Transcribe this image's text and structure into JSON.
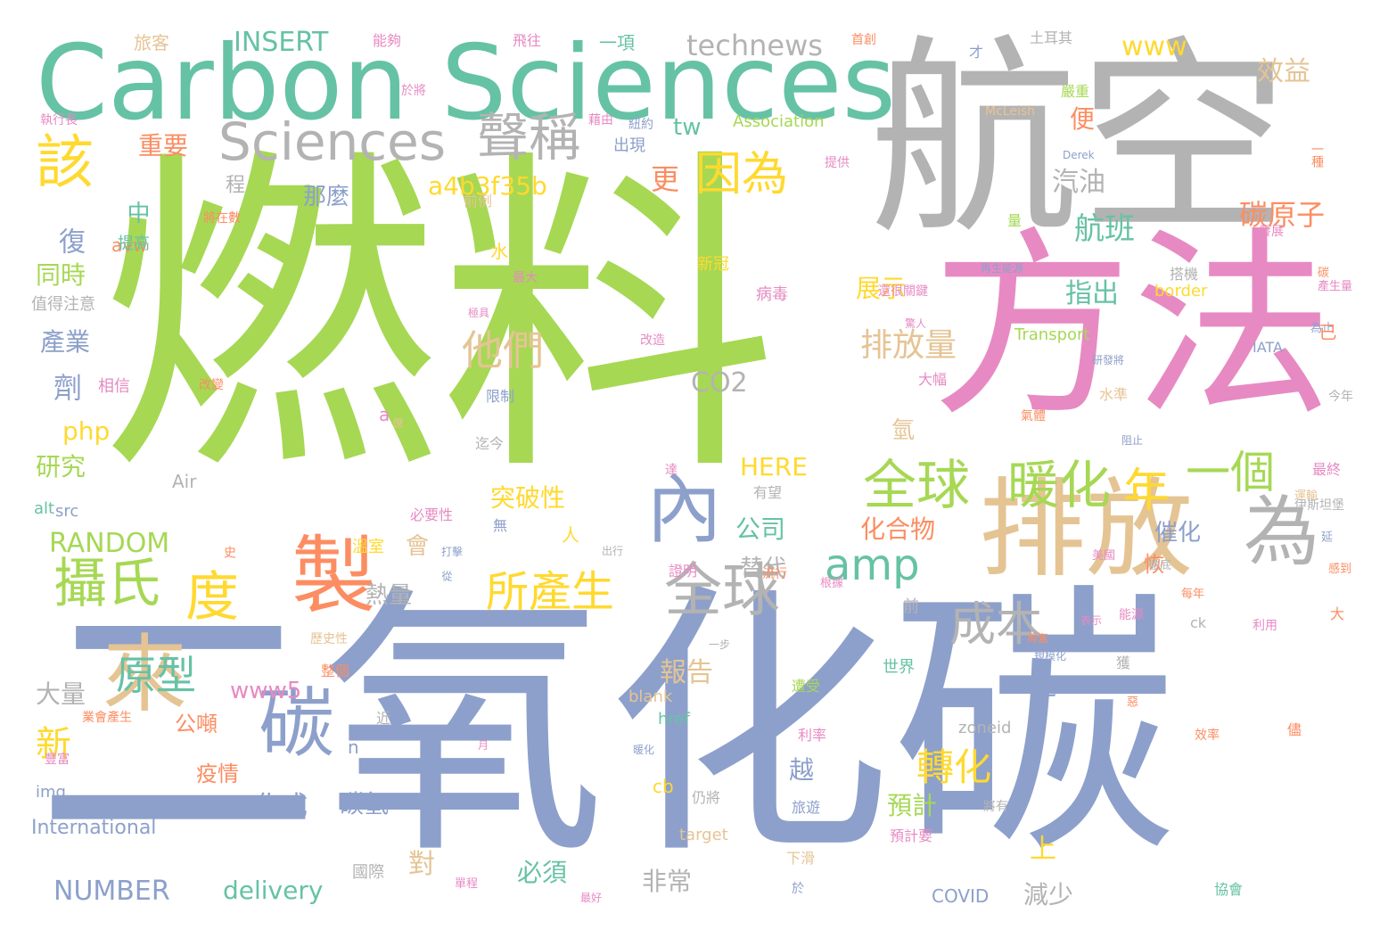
{
  "palette": {
    "green": "#a6d854",
    "gray": "#b3b3b3",
    "blue": "#8da0cb",
    "pink": "#e78ac3",
    "teal": "#66c2a5",
    "orange": "#fc8d62",
    "yellow": "#ffd92f",
    "tan": "#e5c494"
  },
  "words": [
    {
      "text": "燃料",
      "color": "green"
    },
    {
      "text": "二氧化碳",
      "color": "blue"
    },
    {
      "text": "Carbon Sciences",
      "color": "teal"
    },
    {
      "text": "航空",
      "color": "gray"
    },
    {
      "text": "方法",
      "color": "pink"
    },
    {
      "text": "排放",
      "color": "tan"
    },
    {
      "text": "內",
      "color": "blue"
    },
    {
      "text": "為",
      "color": "gray"
    },
    {
      "text": "製",
      "color": "orange"
    },
    {
      "text": "來",
      "color": "tan"
    },
    {
      "text": "碳",
      "color": "blue"
    },
    {
      "text": "Sciences",
      "color": "gray"
    },
    {
      "text": "聲稱",
      "color": "gray"
    },
    {
      "text": "該",
      "color": "yellow"
    },
    {
      "text": "攝氏",
      "color": "green"
    },
    {
      "text": "度",
      "color": "yellow"
    },
    {
      "text": "全球",
      "color": "gray"
    },
    {
      "text": "全球",
      "color": "green"
    },
    {
      "text": "暖化",
      "color": "green"
    },
    {
      "text": "年",
      "color": "yellow"
    },
    {
      "text": "一個",
      "color": "green"
    },
    {
      "text": "amp",
      "color": "teal"
    },
    {
      "text": "所產生",
      "color": "yellow"
    },
    {
      "text": "成本",
      "color": "gray"
    },
    {
      "text": "因為",
      "color": "yellow"
    },
    {
      "text": "他們",
      "color": "tan"
    },
    {
      "text": "原型",
      "color": "teal"
    },
    {
      "text": "轉化",
      "color": "yellow"
    },
    {
      "text": "排放量",
      "color": "tan"
    },
    {
      "text": "航班",
      "color": "teal"
    },
    {
      "text": "碳原子",
      "color": "orange"
    },
    {
      "text": "technews",
      "color": "gray"
    },
    {
      "text": "INSERT",
      "color": "teal"
    },
    {
      "text": "www",
      "color": "yellow"
    },
    {
      "text": "效益",
      "color": "tan"
    },
    {
      "text": "a4b3f35b",
      "color": "yellow"
    },
    {
      "text": "更",
      "color": "orange"
    },
    {
      "text": "重要",
      "color": "orange"
    },
    {
      "text": "那麼",
      "color": "blue"
    },
    {
      "text": "汽油",
      "color": "gray"
    },
    {
      "text": "便",
      "color": "orange"
    },
    {
      "text": "tw",
      "color": "teal"
    },
    {
      "text": "CO2",
      "color": "gray"
    },
    {
      "text": "指出",
      "color": "teal"
    },
    {
      "text": "展示",
      "color": "yellow"
    },
    {
      "text": "RANDOM",
      "color": "green"
    },
    {
      "text": "HERE",
      "color": "yellow"
    },
    {
      "text": "突破性",
      "color": "yellow"
    },
    {
      "text": "公司",
      "color": "teal"
    },
    {
      "text": "化合物",
      "color": "orange"
    },
    {
      "text": "催化",
      "color": "blue"
    },
    {
      "text": "恢",
      "color": "orange"
    },
    {
      "text": "替代",
      "color": "gray"
    },
    {
      "text": "熱量",
      "color": "gray"
    },
    {
      "text": "報告",
      "color": "tan"
    },
    {
      "text": "www5",
      "color": "pink"
    },
    {
      "text": "大量",
      "color": "gray"
    },
    {
      "text": "新",
      "color": "yellow"
    },
    {
      "text": "公噸",
      "color": "orange"
    },
    {
      "text": "疫情",
      "color": "orange"
    },
    {
      "text": "轉",
      "color": "blue"
    },
    {
      "text": "化成",
      "color": "blue"
    },
    {
      "text": "碳氫",
      "color": "blue"
    },
    {
      "text": "預計",
      "color": "green"
    },
    {
      "text": "上",
      "color": "yellow"
    },
    {
      "text": "減少",
      "color": "gray"
    },
    {
      "text": "必須",
      "color": "teal"
    },
    {
      "text": "非常",
      "color": "gray"
    },
    {
      "text": "NUMBER",
      "color": "blue"
    },
    {
      "text": "delivery",
      "color": "teal"
    },
    {
      "text": "產業",
      "color": "blue"
    },
    {
      "text": "同時",
      "color": "green"
    },
    {
      "text": "研究",
      "color": "green"
    },
    {
      "text": "php",
      "color": "yellow"
    },
    {
      "text": "劑",
      "color": "blue"
    },
    {
      "text": "復",
      "color": "blue"
    },
    {
      "text": "中",
      "color": "teal"
    },
    {
      "text": "程",
      "color": "gray"
    },
    {
      "text": "avw",
      "color": "orange"
    },
    {
      "text": "提高",
      "color": "teal"
    },
    {
      "text": "值得注意",
      "color": "gray"
    },
    {
      "text": "Association",
      "color": "green"
    },
    {
      "text": "McLeish",
      "color": "tan"
    },
    {
      "text": "Transport",
      "color": "green"
    },
    {
      "text": "border",
      "color": "yellow"
    },
    {
      "text": "IATA",
      "color": "blue"
    },
    {
      "text": "International",
      "color": "blue"
    },
    {
      "text": "COVID",
      "color": "blue"
    },
    {
      "text": "img",
      "color": "blue"
    },
    {
      "text": "zoneid",
      "color": "gray"
    },
    {
      "text": "cb",
      "color": "yellow"
    },
    {
      "text": "href",
      "color": "teal"
    },
    {
      "text": "blank",
      "color": "tan"
    },
    {
      "text": "target",
      "color": "tan"
    },
    {
      "text": "src",
      "color": "blue"
    },
    {
      "text": "alt",
      "color": "teal"
    },
    {
      "text": "Air",
      "color": "gray"
    },
    {
      "text": "a",
      "color": "pink"
    },
    {
      "text": "n",
      "color": "blue"
    },
    {
      "text": "ck",
      "color": "gray"
    },
    {
      "text": "旅客",
      "color": "tan"
    },
    {
      "text": "能夠",
      "color": "pink"
    },
    {
      "text": "飛往",
      "color": "pink"
    },
    {
      "text": "一項",
      "color": "teal"
    },
    {
      "text": "首創",
      "color": "orange"
    },
    {
      "text": "土耳其",
      "color": "gray"
    },
    {
      "text": "才",
      "color": "blue"
    },
    {
      "text": "嚴重",
      "color": "green"
    },
    {
      "text": "執行長",
      "color": "pink"
    },
    {
      "text": "於將",
      "color": "pink"
    },
    {
      "text": "藉由",
      "color": "pink"
    },
    {
      "text": "紐約",
      "color": "blue"
    },
    {
      "text": "出現",
      "color": "blue"
    },
    {
      "text": "一種",
      "color": "orange"
    },
    {
      "text": "Derek",
      "color": "blue"
    },
    {
      "text": "提供",
      "color": "pink"
    },
    {
      "text": "將在數",
      "color": "orange"
    },
    {
      "text": "前例",
      "color": "tan"
    },
    {
      "text": "水",
      "color": "yellow"
    },
    {
      "text": "新冠",
      "color": "yellow"
    },
    {
      "text": "量",
      "color": "green"
    },
    {
      "text": "發展",
      "color": "pink"
    },
    {
      "text": "搭機",
      "color": "gray"
    },
    {
      "text": "再生能源",
      "color": "blue"
    },
    {
      "text": "最大",
      "color": "pink"
    },
    {
      "text": "極具",
      "color": "pink"
    },
    {
      "text": "病毒",
      "color": "pink"
    },
    {
      "text": "還很關鍵",
      "color": "pink"
    },
    {
      "text": "驚人",
      "color": "pink"
    },
    {
      "text": "碳",
      "color": "orange"
    },
    {
      "text": "產生量",
      "color": "pink"
    },
    {
      "text": "相信",
      "color": "pink"
    },
    {
      "text": "改變",
      "color": "orange"
    },
    {
      "text": "改造",
      "color": "pink"
    },
    {
      "text": "研發將",
      "color": "blue"
    },
    {
      "text": "為止",
      "color": "blue"
    },
    {
      "text": "限制",
      "color": "blue"
    },
    {
      "text": "大幅",
      "color": "pink"
    },
    {
      "text": "水準",
      "color": "tan"
    },
    {
      "text": "今年",
      "color": "gray"
    },
    {
      "text": "億",
      "color": "tan"
    },
    {
      "text": "迄今",
      "color": "gray"
    },
    {
      "text": "氣體",
      "color": "orange"
    },
    {
      "text": "阻止",
      "color": "blue"
    },
    {
      "text": "達",
      "color": "pink"
    },
    {
      "text": "有望",
      "color": "gray"
    },
    {
      "text": "最終",
      "color": "pink"
    },
    {
      "text": "運輸",
      "color": "tan"
    },
    {
      "text": "必要性",
      "color": "pink"
    },
    {
      "text": "無",
      "color": "blue"
    },
    {
      "text": "打擊",
      "color": "blue"
    },
    {
      "text": "伊斯坦堡",
      "color": "gray"
    },
    {
      "text": "延",
      "color": "blue"
    },
    {
      "text": "史",
      "color": "orange"
    },
    {
      "text": "溫室",
      "color": "yellow"
    },
    {
      "text": "出行",
      "color": "gray"
    },
    {
      "text": "美國",
      "color": "pink"
    },
    {
      "text": "徹底",
      "color": "gray"
    },
    {
      "text": "感到",
      "color": "orange"
    },
    {
      "text": "從",
      "color": "blue"
    },
    {
      "text": "證明",
      "color": "pink"
    },
    {
      "text": "流行",
      "color": "orange"
    },
    {
      "text": "根據",
      "color": "pink"
    },
    {
      "text": "每年",
      "color": "orange"
    },
    {
      "text": "能源",
      "color": "pink"
    },
    {
      "text": "前",
      "color": "gray"
    },
    {
      "text": "表示",
      "color": "pink"
    },
    {
      "text": "大",
      "color": "orange"
    },
    {
      "text": "利用",
      "color": "pink"
    },
    {
      "text": "一步",
      "color": "gray"
    },
    {
      "text": "興奮",
      "color": "orange"
    },
    {
      "text": "規模化",
      "color": "blue"
    },
    {
      "text": "歷史性",
      "color": "tan"
    },
    {
      "text": "整個",
      "color": "orange"
    },
    {
      "text": "世界",
      "color": "teal"
    },
    {
      "text": "遭受",
      "color": "green"
    },
    {
      "text": "獲",
      "color": "gray"
    },
    {
      "text": "惡",
      "color": "orange"
    },
    {
      "text": "業會產生",
      "color": "orange"
    },
    {
      "text": "月",
      "color": "pink"
    },
    {
      "text": "暖化",
      "color": "blue"
    },
    {
      "text": "利率",
      "color": "pink"
    },
    {
      "text": "效率",
      "color": "orange"
    },
    {
      "text": "儘",
      "color": "orange"
    },
    {
      "text": "豐富",
      "color": "pink"
    },
    {
      "text": "近",
      "color": "gray"
    },
    {
      "text": "越",
      "color": "blue"
    },
    {
      "text": "仍將",
      "color": "gray"
    },
    {
      "text": "旅遊",
      "color": "blue"
    },
    {
      "text": "將有",
      "color": "gray"
    },
    {
      "text": "預計要",
      "color": "pink"
    },
    {
      "text": "下滑",
      "color": "tan"
    },
    {
      "text": "對",
      "color": "tan"
    },
    {
      "text": "國際",
      "color": "gray"
    },
    {
      "text": "單程",
      "color": "pink"
    },
    {
      "text": "最好",
      "color": "pink"
    },
    {
      "text": "於",
      "color": "blue"
    },
    {
      "text": "協會",
      "color": "teal"
    },
    {
      "text": "已",
      "color": "orange"
    },
    {
      "text": "造",
      "color": "blue"
    },
    {
      "text": "會",
      "color": "tan"
    },
    {
      "text": "人",
      "color": "yellow"
    },
    {
      "text": "氫",
      "color": "tan"
    }
  ]
}
